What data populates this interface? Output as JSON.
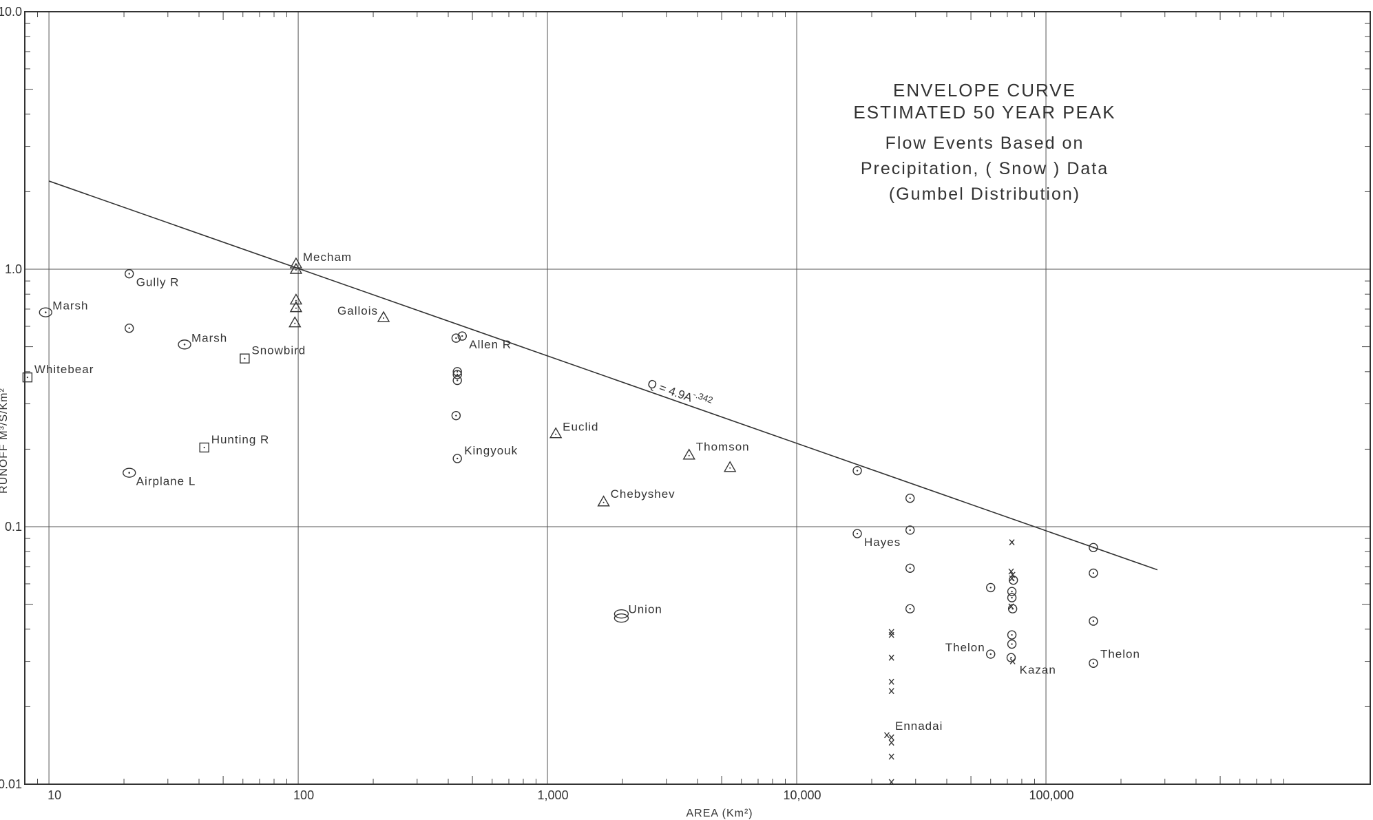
{
  "chart_data": {
    "type": "scatter",
    "title_lines": [
      "ENVELOPE  CURVE",
      "ESTIMATED  50  YEAR  PEAK",
      "Flow  Events  Based  on",
      "Precipitation, ( Snow )  Data",
      "(Gumbel  Distribution)"
    ],
    "xlabel": "AREA  (Km²)",
    "ylabel": "RUNOFF  M³/S/Km²",
    "x_scale": "log",
    "y_scale": "log",
    "xlim": [
      8,
      2000000
    ],
    "ylim": [
      0.01,
      10.0
    ],
    "x_tick_labels": [
      {
        "value": 10,
        "label": "10"
      },
      {
        "value": 100,
        "label": "100"
      },
      {
        "value": 1000,
        "label": "1,000"
      },
      {
        "value": 10000,
        "label": "10,000"
      },
      {
        "value": 100000,
        "label": "100,000"
      }
    ],
    "y_tick_labels": [
      {
        "value": 10,
        "label": "10.0"
      },
      {
        "value": 1,
        "label": "1.0"
      },
      {
        "value": 0.1,
        "label": "0.1"
      },
      {
        "value": 0.01,
        "label": "0.01"
      }
    ],
    "grid": true,
    "envelope_line": {
      "equation": "Q = 4.9A",
      "exponent": "-.342",
      "points": [
        [
          10,
          2.2
        ],
        [
          280000,
          0.068
        ]
      ]
    },
    "points": [
      {
        "x": 8.2,
        "y": 0.38,
        "marker": "square",
        "label": "Whitebear"
      },
      {
        "x": 9.7,
        "y": 0.68,
        "marker": "circle-dot-large",
        "label": "Marsh"
      },
      {
        "x": 21,
        "y": 0.96,
        "marker": "circle-dot",
        "label": "Gully  R"
      },
      {
        "x": 21,
        "y": 0.59,
        "marker": "circle-dot",
        "label": ""
      },
      {
        "x": 21,
        "y": 0.162,
        "marker": "circle-dot-large",
        "label": "Airplane  L"
      },
      {
        "x": 35,
        "y": 0.51,
        "marker": "circle-dot-large",
        "label": "Marsh"
      },
      {
        "x": 42,
        "y": 0.203,
        "marker": "square",
        "label": "Hunting  R"
      },
      {
        "x": 61,
        "y": 0.45,
        "marker": "square",
        "label": "Snowbird"
      },
      {
        "x": 98,
        "y": 1.05,
        "marker": "triangle",
        "label": "Mecham"
      },
      {
        "x": 98,
        "y": 1.0,
        "marker": "triangle",
        "label": ""
      },
      {
        "x": 98,
        "y": 0.76,
        "marker": "triangle",
        "label": ""
      },
      {
        "x": 98,
        "y": 0.71,
        "marker": "triangle",
        "label": ""
      },
      {
        "x": 97,
        "y": 0.62,
        "marker": "triangle",
        "label": ""
      },
      {
        "x": 220,
        "y": 0.65,
        "marker": "triangle",
        "label": "Gallois"
      },
      {
        "x": 430,
        "y": 0.54,
        "marker": "circle-dot",
        "label": ""
      },
      {
        "x": 455,
        "y": 0.55,
        "marker": "circle-dot",
        "label": "Allen  R"
      },
      {
        "x": 435,
        "y": 0.4,
        "marker": "circle-dot",
        "label": ""
      },
      {
        "x": 435,
        "y": 0.39,
        "marker": "circle-dot",
        "label": ""
      },
      {
        "x": 435,
        "y": 0.37,
        "marker": "circle-dot",
        "label": ""
      },
      {
        "x": 430,
        "y": 0.27,
        "marker": "circle-dot",
        "label": ""
      },
      {
        "x": 435,
        "y": 0.184,
        "marker": "circle-dot",
        "label": "Kingyouk"
      },
      {
        "x": 1080,
        "y": 0.23,
        "marker": "triangle",
        "label": "Euclid"
      },
      {
        "x": 1680,
        "y": 0.125,
        "marker": "triangle",
        "label": "Chebyshev"
      },
      {
        "x": 1980,
        "y": 0.045,
        "marker": "double-circle",
        "label": "Union"
      },
      {
        "x": 3700,
        "y": 0.19,
        "marker": "triangle",
        "label": "Thomson"
      },
      {
        "x": 5400,
        "y": 0.17,
        "marker": "triangle",
        "label": ""
      },
      {
        "x": 17500,
        "y": 0.165,
        "marker": "circle-dot",
        "label": ""
      },
      {
        "x": 17500,
        "y": 0.094,
        "marker": "circle-dot",
        "label": "Hayes"
      },
      {
        "x": 28500,
        "y": 0.129,
        "marker": "circle-dot",
        "label": ""
      },
      {
        "x": 28500,
        "y": 0.097,
        "marker": "circle-dot",
        "label": ""
      },
      {
        "x": 28500,
        "y": 0.069,
        "marker": "circle-dot",
        "label": ""
      },
      {
        "x": 28500,
        "y": 0.048,
        "marker": "circle-dot",
        "label": ""
      },
      {
        "x": 24000,
        "y": 0.039,
        "marker": "x",
        "label": ""
      },
      {
        "x": 24000,
        "y": 0.038,
        "marker": "x",
        "label": ""
      },
      {
        "x": 24000,
        "y": 0.031,
        "marker": "x",
        "label": ""
      },
      {
        "x": 24000,
        "y": 0.025,
        "marker": "x",
        "label": ""
      },
      {
        "x": 24000,
        "y": 0.023,
        "marker": "x",
        "label": ""
      },
      {
        "x": 23000,
        "y": 0.0155,
        "marker": "x",
        "label": "Ennadai"
      },
      {
        "x": 24000,
        "y": 0.0152,
        "marker": "x",
        "label": ""
      },
      {
        "x": 24000,
        "y": 0.0145,
        "marker": "x",
        "label": ""
      },
      {
        "x": 24000,
        "y": 0.0128,
        "marker": "x",
        "label": ""
      },
      {
        "x": 24000,
        "y": 0.0102,
        "marker": "x",
        "label": ""
      },
      {
        "x": 60000,
        "y": 0.058,
        "marker": "circle-dot",
        "label": ""
      },
      {
        "x": 60000,
        "y": 0.032,
        "marker": "circle-dot",
        "label": "Thelon"
      },
      {
        "x": 73000,
        "y": 0.087,
        "marker": "x",
        "label": ""
      },
      {
        "x": 72500,
        "y": 0.067,
        "marker": "x",
        "label": ""
      },
      {
        "x": 73500,
        "y": 0.065,
        "marker": "x",
        "label": ""
      },
      {
        "x": 73000,
        "y": 0.063,
        "marker": "x",
        "label": ""
      },
      {
        "x": 74000,
        "y": 0.062,
        "marker": "circle-dot",
        "label": ""
      },
      {
        "x": 73000,
        "y": 0.056,
        "marker": "circle-dot",
        "label": ""
      },
      {
        "x": 73000,
        "y": 0.053,
        "marker": "circle-dot",
        "label": ""
      },
      {
        "x": 72500,
        "y": 0.049,
        "marker": "x",
        "label": ""
      },
      {
        "x": 73500,
        "y": 0.048,
        "marker": "circle-dot",
        "label": ""
      },
      {
        "x": 73000,
        "y": 0.038,
        "marker": "circle-dot",
        "label": ""
      },
      {
        "x": 73000,
        "y": 0.035,
        "marker": "circle-dot",
        "label": ""
      },
      {
        "x": 72500,
        "y": 0.031,
        "marker": "circle-dot",
        "label": ""
      },
      {
        "x": 73500,
        "y": 0.03,
        "marker": "x",
        "label": "Kazan"
      },
      {
        "x": 155000,
        "y": 0.083,
        "marker": "circle-dot",
        "label": ""
      },
      {
        "x": 155000,
        "y": 0.066,
        "marker": "circle-dot",
        "label": ""
      },
      {
        "x": 155000,
        "y": 0.043,
        "marker": "circle-dot",
        "label": ""
      },
      {
        "x": 155000,
        "y": 0.0295,
        "marker": "circle-dot",
        "label": "Thelon"
      }
    ]
  }
}
